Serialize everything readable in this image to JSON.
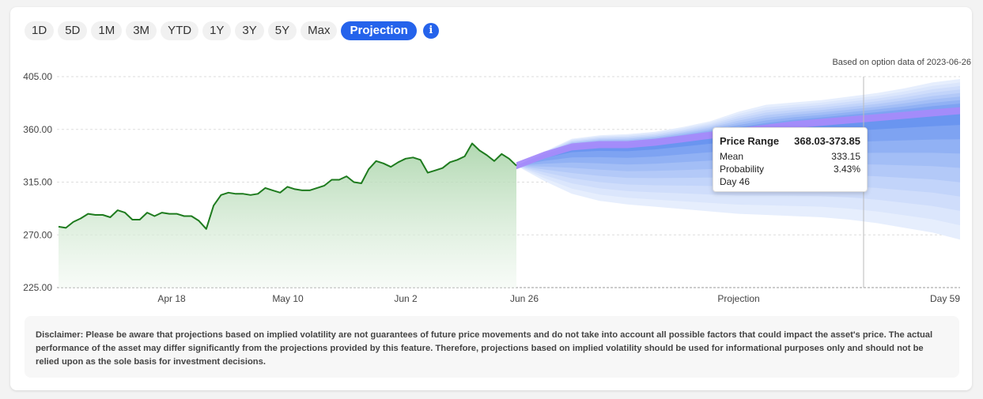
{
  "range_buttons": [
    "1D",
    "5D",
    "1M",
    "3M",
    "YTD",
    "1Y",
    "3Y",
    "5Y",
    "Max",
    "Projection"
  ],
  "active_range": "Projection",
  "info_icon": "i",
  "based_on": "Based on option data of 2023-06-26",
  "tooltip": {
    "title": "Price Range",
    "range": "368.03-373.85",
    "rows": [
      {
        "label": "Mean",
        "value": "333.15"
      },
      {
        "label": "Probability",
        "value": "3.43%"
      },
      {
        "label": "Day 46",
        "value": ""
      }
    ]
  },
  "disclaimer": "Disclaimer: Please be aware that projections based on implied volatility are not guarantees of future price movements and do not take into account all possible factors that could impact the asset's price. The actual performance of the asset may differ significantly from the projections provided by this feature. Therefore, projections based on implied volatility should be used for informational purposes only and should not be relied upon as the sole basis for investment decisions.",
  "colors": {
    "accent": "#2563eb",
    "history_line": "#1e7b1e",
    "history_fill": "#cfe7cf",
    "cone_outer": "#e3ecfd",
    "cone_inner": "#5b8df0",
    "highlight_band": "#a78bfa"
  },
  "chart_data": {
    "type": "area",
    "title": "",
    "xlabel": "",
    "ylabel": "",
    "ylim": [
      225,
      405
    ],
    "y_ticks": [
      "225.00",
      "270.00",
      "315.00",
      "360.00",
      "405.00"
    ],
    "x_tick_labels": [
      "Apr 18",
      "May 10",
      "Jun 2",
      "Jun 26",
      "Projection",
      "Day 59"
    ],
    "grid": true,
    "history": {
      "name": "",
      "values": [
        277,
        276,
        281,
        284,
        288,
        287,
        287,
        285,
        291,
        289,
        283,
        283,
        289,
        286,
        289,
        288,
        288,
        286,
        286,
        282,
        275,
        295,
        304,
        306,
        305,
        305,
        304,
        305,
        310,
        308,
        306,
        311,
        309,
        308,
        308,
        310,
        312,
        317,
        317,
        320,
        315,
        314,
        326,
        333,
        331,
        328,
        332,
        335,
        336,
        334,
        323,
        325,
        327,
        332,
        334,
        337,
        348,
        342,
        338,
        333,
        339,
        335,
        329
      ]
    },
    "projection": {
      "start_value": 329,
      "days": 59,
      "mean": [
        329,
        338,
        345,
        347,
        347,
        349,
        352,
        355,
        358,
        361,
        364,
        366,
        368,
        370,
        372,
        374,
        376
      ],
      "outer_upper": [
        329,
        341,
        352,
        355,
        356,
        358,
        362,
        367,
        375,
        381,
        383,
        385,
        388,
        391,
        395,
        400,
        403
      ],
      "outer_lower": [
        329,
        316,
        305,
        299,
        296,
        294,
        292,
        290,
        288,
        287,
        286,
        285,
        283,
        280,
        276,
        272,
        266
      ],
      "highlight_band": {
        "low": 368.03,
        "high": 373.85,
        "day": 46
      }
    }
  }
}
